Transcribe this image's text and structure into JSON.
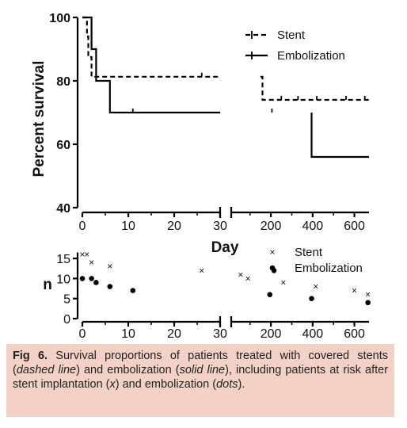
{
  "chart_data": [
    {
      "type": "line",
      "subtype": "kaplan-meier",
      "ylabel": "Percent survival",
      "xlabel": "Day",
      "ylim": [
        40,
        100
      ],
      "y_ticks": [
        "40",
        "60",
        "80",
        "100"
      ],
      "x_ticks_left": [
        "0",
        "10",
        "20",
        "30"
      ],
      "x_ticks_right": [
        "200",
        "400",
        "600"
      ],
      "x_break": true,
      "legend_position": "top-right",
      "series": [
        {
          "name": "Stent",
          "style": "dashed",
          "steps": [
            [
              0,
              100
            ],
            [
              1,
              94
            ],
            [
              1.3,
              87.5
            ],
            [
              2,
              81.3
            ],
            [
              30,
              81.3
            ],
            [
              150,
              81.3
            ],
            [
              160,
              74
            ],
            [
              670,
              74
            ]
          ],
          "censor_marks": [
            [
              26,
              81.3
            ],
            [
              250,
              74
            ],
            [
              330,
              74
            ],
            [
              420,
              74
            ],
            [
              560,
              74
            ],
            [
              650,
              74
            ]
          ]
        },
        {
          "name": "Embolization",
          "style": "solid",
          "steps": [
            [
              0,
              100
            ],
            [
              2,
              90
            ],
            [
              3,
              80
            ],
            [
              6,
              70
            ],
            [
              30,
              70
            ],
            [
              395,
              70
            ],
            [
              395,
              56
            ],
            [
              670,
              56
            ]
          ],
          "censor_marks": [
            [
              11,
              70
            ],
            [
              205,
              70
            ]
          ]
        }
      ]
    },
    {
      "type": "scatter",
      "subtitle": "patients at risk",
      "ylabel": "n",
      "ylim": [
        0,
        17
      ],
      "y_ticks": [
        "0",
        "5",
        "10",
        "15"
      ],
      "x_ticks_left": [
        "0",
        "10",
        "20",
        "30"
      ],
      "x_ticks_right": [
        "200",
        "400",
        "600"
      ],
      "legend_position": "top-right",
      "series": [
        {
          "name": "Stent",
          "marker": "x",
          "points": [
            [
              0,
              16
            ],
            [
              1,
              16
            ],
            [
              2,
              14
            ],
            [
              6,
              13
            ],
            [
              26,
              12
            ],
            [
              55,
              11
            ],
            [
              90,
              10
            ],
            [
              260,
              9
            ],
            [
              415,
              8
            ],
            [
              600,
              7
            ],
            [
              665,
              6
            ]
          ]
        },
        {
          "name": "Embolization",
          "marker": "dot",
          "points": [
            [
              0,
              10
            ],
            [
              2,
              10
            ],
            [
              3,
              9
            ],
            [
              6,
              8
            ],
            [
              11,
              7
            ],
            [
              195,
              6
            ],
            [
              215,
              12
            ],
            [
              395,
              5
            ],
            [
              665,
              4
            ]
          ]
        }
      ]
    }
  ],
  "caption": {
    "label": "Fig 6.",
    "parts": [
      " Survival proportions of patients treated with covered stents (",
      "dashed line",
      ") and embolization (",
      "solid line",
      "), including patients at risk after stent implantation (",
      "x",
      ") and embolization (",
      "dots",
      ")."
    ]
  }
}
